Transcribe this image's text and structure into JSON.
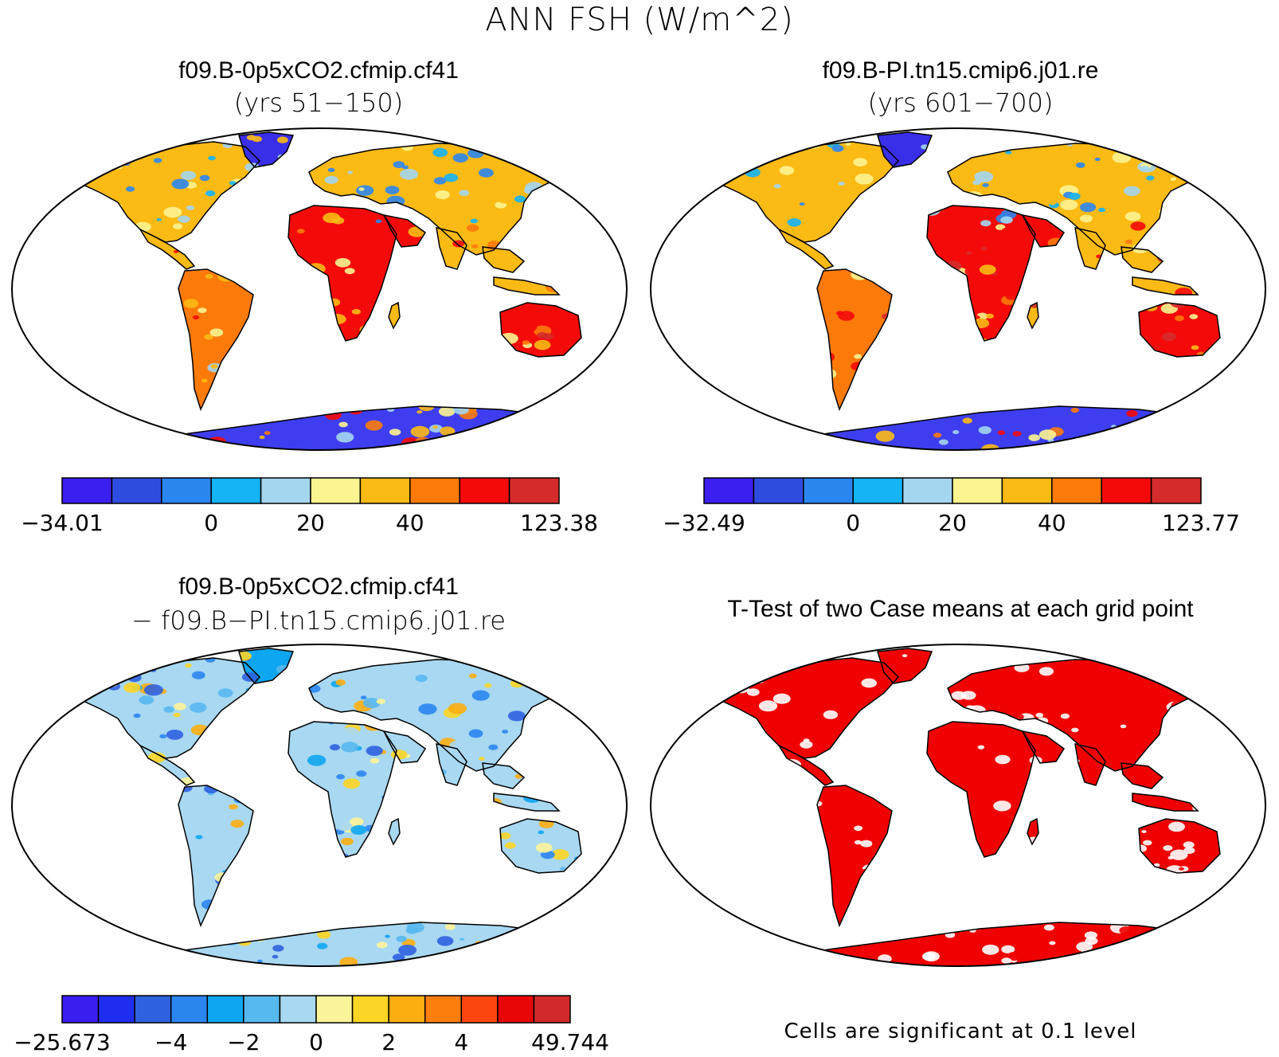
{
  "figure": {
    "title": "ANN FSH (W/m^2)",
    "colors": {
      "ocean": "#ffffff",
      "outline": "#000000",
      "antarctica": "#3e3ef0",
      "greenland": "#3a2fe8",
      "significant": "#f00000"
    }
  },
  "panels": [
    {
      "title": "f09.B-0p5xCO2.cfmip.cf41",
      "subtitle": "(yrs 51−150)",
      "land_icon": "world-land-heatmap",
      "colorbar": {
        "colors": [
          "#3b1ef0",
          "#2f4ce0",
          "#2b86f0",
          "#14b4f5",
          "#a4d6f0",
          "#fcf490",
          "#fcba14",
          "#fc7a0a",
          "#f50a0a",
          "#d52b2b"
        ],
        "tick_labels": [
          "−34.01",
          "0",
          "20",
          "40",
          "123.38"
        ]
      }
    },
    {
      "title": "f09.B-PI.tn15.cmip6.j01.re",
      "subtitle": "(yrs 601−700)",
      "land_icon": "world-land-heatmap",
      "colorbar": {
        "colors": [
          "#3b1ef0",
          "#2f4ce0",
          "#2b86f0",
          "#14b4f5",
          "#a4d6f0",
          "#fcf490",
          "#fcba14",
          "#fc7a0a",
          "#f50a0a",
          "#d52b2b"
        ],
        "tick_labels": [
          "−32.49",
          "0",
          "20",
          "40",
          "123.77"
        ]
      }
    },
    {
      "title": "f09.B-0p5xCO2.cfmip.cf41",
      "subtitle": "−  f09.B−PI.tn15.cmip6.j01.re",
      "land_icon": "world-land-difference",
      "colorbar": {
        "colors": [
          "#3a1ef0",
          "#1f2ef0",
          "#2f62e0",
          "#2b86f0",
          "#0ea6f0",
          "#58b8f0",
          "#a8d8f2",
          "#fcf49a",
          "#fcd624",
          "#fcae10",
          "#fc7e0c",
          "#fc4610",
          "#e80606",
          "#d22a2a"
        ],
        "tick_labels": [
          "−25.673",
          "−4",
          "−2",
          "0",
          "2",
          "4",
          "49.744"
        ]
      }
    },
    {
      "title": "T-Test of two Case means at each grid point",
      "land_icon": "world-land-significance",
      "footnote": "Cells are significant at 0.1 level"
    }
  ]
}
